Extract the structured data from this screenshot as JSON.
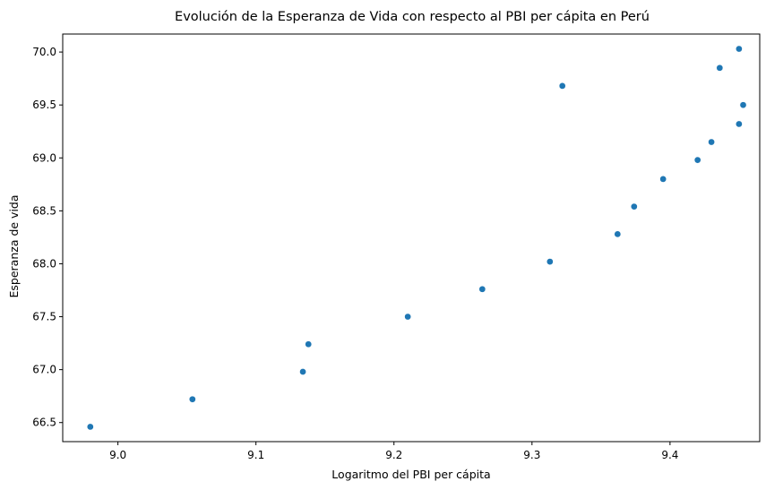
{
  "chart_data": {
    "type": "scatter",
    "title": "Evolución de la Esperanza de Vida con respecto al PBI per cápita en Perú",
    "xlabel": "Logaritmo del PBI per cápita",
    "ylabel": "Esperanza de vida",
    "xlim": [
      8.96,
      9.465
    ],
    "ylim": [
      66.32,
      70.17
    ],
    "xticks": [
      9.0,
      9.1,
      9.2,
      9.3,
      9.4
    ],
    "xtick_labels": [
      "9.0",
      "9.1",
      "9.2",
      "9.3",
      "9.4"
    ],
    "yticks": [
      66.5,
      67.0,
      67.5,
      68.0,
      68.5,
      69.0,
      69.5,
      70.0
    ],
    "ytick_labels": [
      "66.5",
      "67.0",
      "67.5",
      "68.0",
      "68.5",
      "69.0",
      "69.5",
      "70.0"
    ],
    "grid": false,
    "legend": "none",
    "color": "#1f77b4",
    "points": [
      {
        "x": 8.98,
        "y": 66.46
      },
      {
        "x": 9.054,
        "y": 66.72
      },
      {
        "x": 9.134,
        "y": 66.98
      },
      {
        "x": 9.138,
        "y": 67.24
      },
      {
        "x": 9.21,
        "y": 67.5
      },
      {
        "x": 9.264,
        "y": 67.76
      },
      {
        "x": 9.313,
        "y": 68.02
      },
      {
        "x": 9.362,
        "y": 68.28
      },
      {
        "x": 9.374,
        "y": 68.54
      },
      {
        "x": 9.395,
        "y": 68.8
      },
      {
        "x": 9.42,
        "y": 68.98
      },
      {
        "x": 9.43,
        "y": 69.15
      },
      {
        "x": 9.45,
        "y": 69.32
      },
      {
        "x": 9.453,
        "y": 69.5
      },
      {
        "x": 9.322,
        "y": 69.68
      },
      {
        "x": 9.436,
        "y": 69.85
      },
      {
        "x": 9.45,
        "y": 70.03
      }
    ]
  }
}
